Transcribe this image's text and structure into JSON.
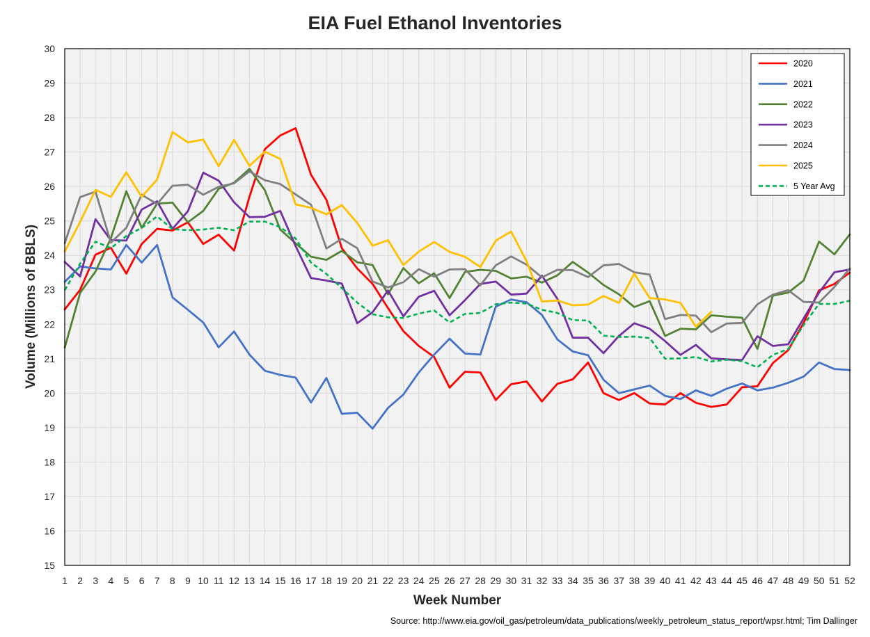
{
  "chart_data": {
    "type": "line",
    "title": "EIA Fuel Ethanol Inventories",
    "xlabel": "Week Number",
    "ylabel": "Volume (Millions of BBLS)",
    "ylim": [
      15,
      30
    ],
    "yticks": [
      15,
      16,
      17,
      18,
      19,
      20,
      21,
      22,
      23,
      24,
      25,
      26,
      27,
      28,
      29,
      30
    ],
    "x": [
      1,
      2,
      3,
      4,
      5,
      6,
      7,
      8,
      9,
      10,
      11,
      12,
      13,
      14,
      15,
      16,
      17,
      18,
      19,
      20,
      21,
      22,
      23,
      24,
      25,
      26,
      27,
      28,
      29,
      30,
      31,
      32,
      33,
      34,
      35,
      36,
      37,
      38,
      39,
      40,
      41,
      42,
      43,
      44,
      45,
      46,
      47,
      48,
      49,
      50,
      51,
      52
    ],
    "grid": true,
    "legend_position": "top-right",
    "source": "Source: http://www.eia.gov/oil_gas/petroleum/data_publications/weekly_petroleum_status_report/wpsr.html; Tim Dallinger",
    "series": [
      {
        "name": "2020",
        "color": "#ff0000",
        "dashed": false,
        "values": [
          22.43,
          23.0,
          24.02,
          24.22,
          23.47,
          24.33,
          24.77,
          24.72,
          24.96,
          24.33,
          24.6,
          24.14,
          25.7,
          27.08,
          27.48,
          27.69,
          26.34,
          25.61,
          24.21,
          23.62,
          23.17,
          22.47,
          21.8,
          21.37,
          21.05,
          20.16,
          20.62,
          20.6,
          19.8,
          20.26,
          20.34,
          19.76,
          20.27,
          20.4,
          20.89,
          20.0,
          19.8,
          20.0,
          19.7,
          19.67,
          20.0,
          19.72,
          19.6,
          19.67,
          20.17,
          20.2,
          20.87,
          21.25,
          22.04,
          22.98,
          23.17,
          23.5
        ]
      },
      {
        "name": "2021",
        "color": "#4472c4",
        "dashed": false,
        "values": [
          23.23,
          23.68,
          23.62,
          23.59,
          24.3,
          23.79,
          24.3,
          22.78,
          22.42,
          22.05,
          21.33,
          21.79,
          21.12,
          20.65,
          20.53,
          20.45,
          19.73,
          20.44,
          19.4,
          19.43,
          18.97,
          19.57,
          19.96,
          20.6,
          21.12,
          21.58,
          21.15,
          21.12,
          22.51,
          22.72,
          22.64,
          22.27,
          21.56,
          21.21,
          21.1,
          20.39,
          20.0,
          20.11,
          20.22,
          19.92,
          19.83,
          20.08,
          19.92,
          20.13,
          20.28,
          20.08,
          20.16,
          20.3,
          20.48,
          20.89,
          20.7,
          20.67
        ]
      },
      {
        "name": "2022",
        "color": "#548235",
        "dashed": false,
        "values": [
          21.32,
          22.91,
          23.53,
          24.5,
          25.86,
          24.8,
          25.5,
          25.53,
          24.96,
          25.29,
          25.93,
          26.11,
          26.51,
          25.89,
          24.75,
          24.35,
          23.96,
          23.87,
          24.13,
          23.8,
          23.72,
          22.87,
          23.63,
          23.19,
          23.48,
          22.76,
          23.52,
          23.58,
          23.55,
          23.33,
          23.38,
          23.21,
          23.42,
          23.81,
          23.5,
          23.14,
          22.87,
          22.5,
          22.67,
          21.66,
          21.87,
          21.85,
          22.26,
          22.22,
          22.19,
          21.28,
          22.83,
          22.92,
          23.27,
          24.4,
          24.03,
          24.61
        ]
      },
      {
        "name": "2023",
        "color": "#7030a0",
        "dashed": false,
        "values": [
          23.81,
          23.39,
          25.05,
          24.44,
          24.43,
          25.33,
          25.57,
          24.77,
          25.28,
          26.4,
          26.17,
          25.54,
          25.11,
          25.12,
          25.29,
          24.27,
          23.34,
          23.27,
          23.18,
          22.03,
          22.35,
          22.98,
          22.23,
          22.8,
          22.97,
          22.26,
          22.7,
          23.17,
          23.24,
          22.86,
          22.89,
          23.41,
          22.74,
          21.61,
          21.61,
          21.16,
          21.66,
          22.03,
          21.87,
          21.51,
          21.11,
          21.4,
          21.01,
          20.98,
          20.96,
          21.65,
          21.37,
          21.42,
          22.17,
          22.92,
          23.51,
          23.59
        ]
      },
      {
        "name": "2024",
        "color": "#7f7f7f",
        "dashed": false,
        "values": [
          24.35,
          25.69,
          25.85,
          24.37,
          24.8,
          25.76,
          25.49,
          26.02,
          26.05,
          25.76,
          25.99,
          26.09,
          26.44,
          26.18,
          26.07,
          25.77,
          25.47,
          24.2,
          24.48,
          24.21,
          23.24,
          23.07,
          23.22,
          23.6,
          23.38,
          23.59,
          23.6,
          23.13,
          23.71,
          23.97,
          23.73,
          23.36,
          23.58,
          23.57,
          23.37,
          23.71,
          23.75,
          23.51,
          23.44,
          22.15,
          22.27,
          22.25,
          21.77,
          22.02,
          22.04,
          22.58,
          22.86,
          22.99,
          22.65,
          22.63,
          23.08,
          23.62
        ]
      },
      {
        "name": "2025",
        "color": "#ffc000",
        "dashed": false,
        "values": [
          24.11,
          24.97,
          25.9,
          25.7,
          26.41,
          25.7,
          26.2,
          27.58,
          27.28,
          27.36,
          26.59,
          27.35,
          26.6,
          27.01,
          26.8,
          25.48,
          25.38,
          25.19,
          25.46,
          24.94,
          24.28,
          24.44,
          23.72,
          24.11,
          24.39,
          24.1,
          23.96,
          23.66,
          24.43,
          24.69,
          23.83,
          22.66,
          22.69,
          22.55,
          22.57,
          22.82,
          22.62,
          23.47,
          22.76,
          22.72,
          22.62,
          21.93,
          22.36,
          null,
          null,
          null,
          null,
          null,
          null,
          null,
          null,
          null
        ]
      },
      {
        "name": "5 Year Avg",
        "color": "#00b050",
        "dashed": true,
        "values": [
          22.99,
          23.76,
          24.4,
          24.21,
          24.56,
          24.8,
          25.13,
          24.76,
          24.73,
          24.75,
          24.8,
          24.73,
          24.98,
          24.98,
          24.82,
          24.49,
          23.79,
          23.46,
          23.05,
          22.63,
          22.29,
          22.2,
          22.18,
          22.31,
          22.4,
          22.05,
          22.3,
          22.33,
          22.58,
          22.63,
          22.6,
          22.42,
          22.33,
          22.12,
          22.11,
          21.67,
          21.63,
          21.64,
          21.6,
          21.0,
          21.01,
          21.05,
          20.92,
          20.97,
          20.93,
          20.75,
          21.11,
          21.28,
          21.98,
          22.59,
          22.59,
          22.68
        ]
      }
    ]
  }
}
